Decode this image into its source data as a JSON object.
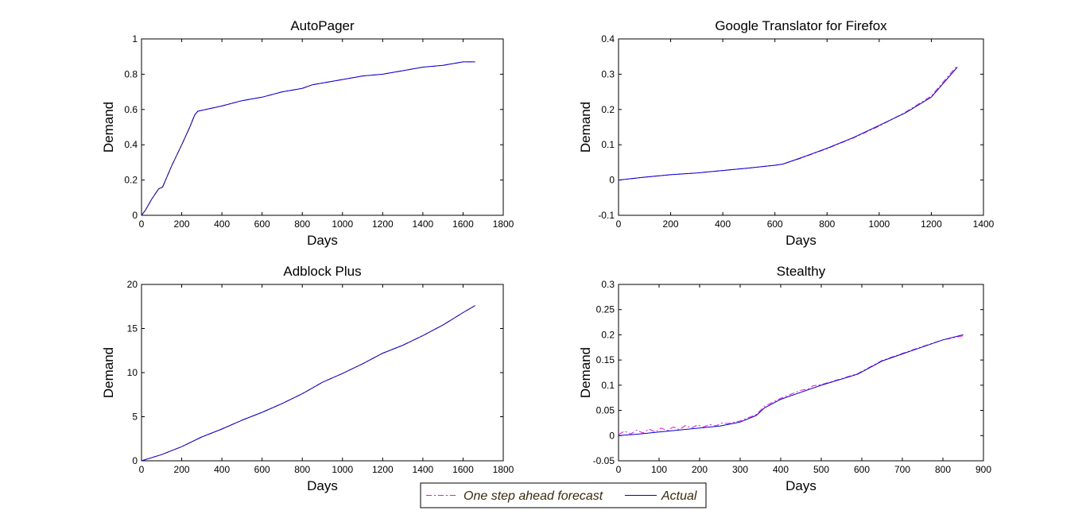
{
  "legend": {
    "forecast_label": "One step ahead forecast",
    "actual_label": "Actual"
  },
  "colors": {
    "forecast": "#ff00ff",
    "actual": "#0000cc",
    "axes": "#000000"
  },
  "chart_data": [
    {
      "type": "line",
      "title": "AutoPager",
      "xlabel": "Days",
      "ylabel": "Demand",
      "xlim": [
        0,
        1800
      ],
      "ylim": [
        0,
        1
      ],
      "xticks": [
        0,
        200,
        400,
        600,
        800,
        1000,
        1200,
        1400,
        1600,
        1800
      ],
      "yticks": [
        0,
        0.2,
        0.4,
        0.6,
        0.8,
        1
      ],
      "xtick_labels": [
        "0",
        "200",
        "400",
        "600",
        "800",
        "1000",
        "1200",
        "1400",
        "1600",
        "1800"
      ],
      "ytick_labels": [
        "0",
        "0.2",
        "0.4",
        "0.6",
        "0.8",
        "1"
      ],
      "series": [
        {
          "name": "Actual",
          "style": "solid",
          "x": [
            0,
            20,
            50,
            85,
            105,
            150,
            200,
            240,
            265,
            280,
            320,
            400,
            500,
            600,
            700,
            800,
            850,
            900,
            1000,
            1100,
            1200,
            1300,
            1400,
            1500,
            1600,
            1660
          ],
          "y": [
            0,
            0.03,
            0.09,
            0.15,
            0.16,
            0.28,
            0.4,
            0.5,
            0.57,
            0.59,
            0.6,
            0.62,
            0.65,
            0.67,
            0.7,
            0.72,
            0.74,
            0.75,
            0.77,
            0.79,
            0.8,
            0.82,
            0.84,
            0.85,
            0.87,
            0.87
          ]
        },
        {
          "name": "One step ahead forecast",
          "style": "dashdot",
          "x": [
            0,
            20,
            50,
            85,
            105,
            150,
            200,
            240,
            265,
            280,
            320,
            400,
            500,
            600,
            700,
            800,
            850,
            900,
            1000,
            1100,
            1200,
            1300,
            1400,
            1500,
            1600,
            1660
          ],
          "y": [
            0,
            0.03,
            0.09,
            0.15,
            0.16,
            0.28,
            0.4,
            0.5,
            0.57,
            0.59,
            0.6,
            0.62,
            0.65,
            0.67,
            0.7,
            0.72,
            0.74,
            0.75,
            0.77,
            0.79,
            0.8,
            0.82,
            0.84,
            0.85,
            0.87,
            0.87
          ]
        }
      ]
    },
    {
      "type": "line",
      "title": "Google Translator for Firefox",
      "xlabel": "Days",
      "ylabel": "Demand",
      "xlim": [
        0,
        1400
      ],
      "ylim": [
        -0.1,
        0.4
      ],
      "xticks": [
        0,
        200,
        400,
        600,
        800,
        1000,
        1200,
        1400
      ],
      "yticks": [
        -0.1,
        0,
        0.1,
        0.2,
        0.3,
        0.4
      ],
      "xtick_labels": [
        "0",
        "200",
        "400",
        "600",
        "800",
        "1000",
        "1200",
        "1400"
      ],
      "ytick_labels": [
        "-0.1",
        "0",
        "0.1",
        "0.2",
        "0.3",
        "0.4"
      ],
      "series": [
        {
          "name": "Actual",
          "style": "solid",
          "x": [
            0,
            100,
            200,
            300,
            400,
            500,
            600,
            630,
            700,
            800,
            900,
            1000,
            1100,
            1200,
            1300
          ],
          "y": [
            0,
            0.008,
            0.015,
            0.02,
            0.027,
            0.034,
            0.042,
            0.045,
            0.063,
            0.09,
            0.12,
            0.155,
            0.19,
            0.235,
            0.32
          ]
        },
        {
          "name": "One step ahead forecast",
          "style": "dashdot",
          "x": [
            0,
            100,
            200,
            300,
            400,
            500,
            600,
            630,
            700,
            800,
            900,
            1000,
            1100,
            1200,
            1300
          ],
          "y": [
            0,
            0.008,
            0.015,
            0.02,
            0.027,
            0.034,
            0.042,
            0.045,
            0.062,
            0.089,
            0.119,
            0.153,
            0.192,
            0.238,
            0.325
          ]
        }
      ]
    },
    {
      "type": "line",
      "title": "Adblock Plus",
      "xlabel": "Days",
      "ylabel": "Demand",
      "xlim": [
        0,
        1800
      ],
      "ylim": [
        0,
        20
      ],
      "xticks": [
        0,
        200,
        400,
        600,
        800,
        1000,
        1200,
        1400,
        1600,
        1800
      ],
      "yticks": [
        0,
        5,
        10,
        15,
        20
      ],
      "xtick_labels": [
        "0",
        "200",
        "400",
        "600",
        "800",
        "1000",
        "1200",
        "1400",
        "1600",
        "1800"
      ],
      "ytick_labels": [
        "0",
        "5",
        "10",
        "15",
        "20"
      ],
      "series": [
        {
          "name": "Actual",
          "style": "solid",
          "x": [
            0,
            100,
            200,
            300,
            400,
            500,
            600,
            700,
            800,
            900,
            1000,
            1100,
            1200,
            1300,
            1400,
            1500,
            1600,
            1660
          ],
          "y": [
            0,
            0.7,
            1.6,
            2.7,
            3.6,
            4.6,
            5.5,
            6.5,
            7.6,
            8.9,
            9.9,
            11.0,
            12.2,
            13.1,
            14.2,
            15.4,
            16.8,
            17.6
          ]
        },
        {
          "name": "One step ahead forecast",
          "style": "dashdot",
          "x": [
            0,
            100,
            200,
            300,
            400,
            500,
            600,
            700,
            800,
            900,
            1000,
            1100,
            1200,
            1300,
            1400,
            1500,
            1600,
            1660
          ],
          "y": [
            0,
            0.7,
            1.6,
            2.7,
            3.6,
            4.6,
            5.5,
            6.5,
            7.6,
            8.9,
            9.9,
            11.0,
            12.2,
            13.1,
            14.2,
            15.4,
            16.8,
            17.6
          ]
        }
      ]
    },
    {
      "type": "line",
      "title": "Stealthy",
      "xlabel": "Days",
      "ylabel": "Demand",
      "xlim": [
        0,
        900
      ],
      "ylim": [
        -0.05,
        0.3
      ],
      "xticks": [
        0,
        100,
        200,
        300,
        400,
        500,
        600,
        700,
        800,
        900
      ],
      "yticks": [
        -0.05,
        0,
        0.05,
        0.1,
        0.15,
        0.2,
        0.25,
        0.3
      ],
      "xtick_labels": [
        "0",
        "100",
        "200",
        "300",
        "400",
        "500",
        "600",
        "700",
        "800",
        "900"
      ],
      "ytick_labels": [
        "-0.05",
        "0",
        "0.05",
        "0.1",
        "0.15",
        "0.2",
        "0.25",
        "0.3"
      ],
      "series": [
        {
          "name": "Actual",
          "style": "solid",
          "x": [
            0,
            50,
            100,
            150,
            200,
            250,
            300,
            340,
            360,
            400,
            450,
            500,
            550,
            590,
            650,
            700,
            750,
            800,
            850
          ],
          "y": [
            0,
            0.003,
            0.007,
            0.011,
            0.015,
            0.019,
            0.027,
            0.04,
            0.055,
            0.072,
            0.086,
            0.1,
            0.112,
            0.122,
            0.148,
            0.162,
            0.176,
            0.19,
            0.2
          ]
        },
        {
          "name": "One step ahead forecast",
          "style": "dashdot",
          "x": [
            0,
            15,
            30,
            45,
            60,
            75,
            90,
            105,
            120,
            135,
            150,
            165,
            180,
            195,
            210,
            225,
            240,
            255,
            270,
            300,
            340,
            360,
            400,
            450,
            470,
            480,
            500,
            550,
            590,
            650,
            700,
            750,
            800,
            850
          ],
          "y": [
            0.002,
            0.009,
            0.003,
            0.011,
            0.005,
            0.013,
            0.007,
            0.015,
            0.01,
            0.017,
            0.012,
            0.02,
            0.015,
            0.021,
            0.017,
            0.022,
            0.019,
            0.025,
            0.024,
            0.029,
            0.042,
            0.058,
            0.074,
            0.09,
            0.093,
            0.099,
            0.101,
            0.113,
            0.123,
            0.149,
            0.163,
            0.177,
            0.19,
            0.198
          ]
        }
      ]
    }
  ]
}
